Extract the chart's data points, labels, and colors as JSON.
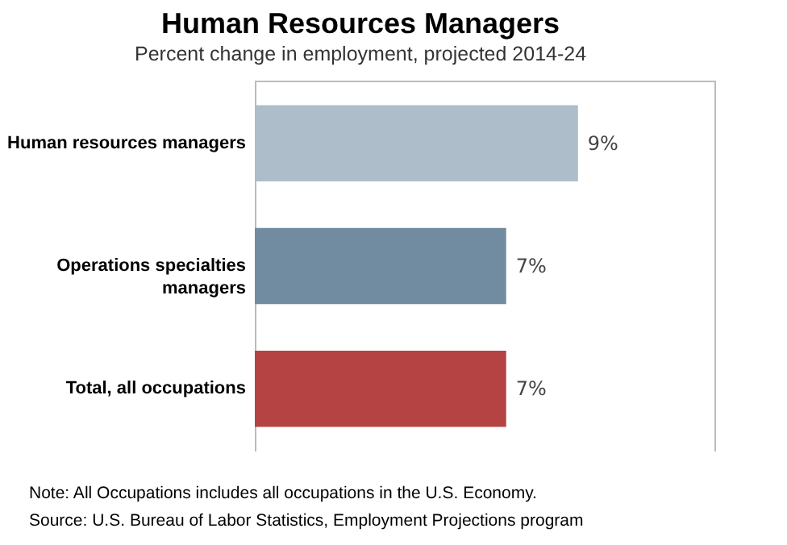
{
  "chart_data": {
    "type": "bar",
    "orientation": "horizontal",
    "title": "Human Resources Managers",
    "subtitle": "Percent change in employment, projected 2014-24",
    "categories": [
      "Human resources managers",
      "Operations specialties managers",
      "Total, all occupations"
    ],
    "values": [
      9,
      7,
      7
    ],
    "colors": [
      "#adbdca",
      "#718ca1",
      "#b54343"
    ],
    "value_labels": [
      "9%",
      "7%",
      "7%"
    ],
    "xlim": [
      0,
      12.8
    ],
    "tick_labels": "y",
    "annotations": [
      "Note: All Occupations includes all occupations in the U.S. Economy.",
      "Source: U.S. Bureau of Labor Statistics, Employment Projections program"
    ]
  }
}
